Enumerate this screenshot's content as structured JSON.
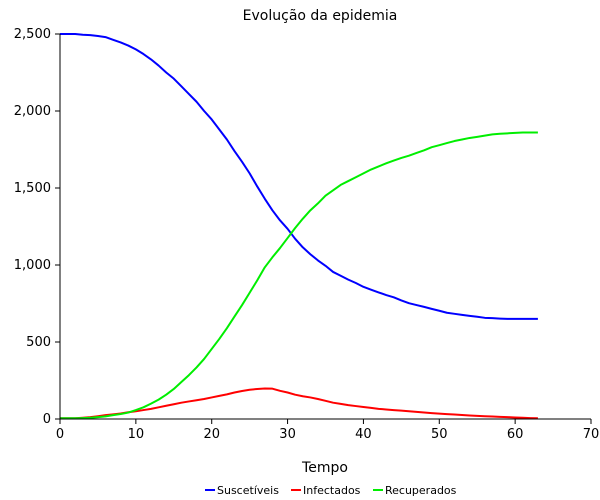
{
  "chart_data": {
    "type": "line",
    "title": "Evolução da epidemia",
    "xlabel": "Tempo",
    "ylabel": "",
    "xlim": [
      0,
      70
    ],
    "ylim": [
      0,
      2500
    ],
    "xticks": [
      0,
      10,
      20,
      30,
      40,
      50,
      60,
      70
    ],
    "yticks": [
      0,
      500,
      1000,
      1500,
      2000,
      2500
    ],
    "xtick_labels": [
      "0",
      "10",
      "20",
      "30",
      "40",
      "50",
      "60",
      "70"
    ],
    "ytick_labels": [
      "0",
      "500",
      "1,000",
      "1,500",
      "2,000",
      "2,500"
    ],
    "grid": false,
    "legend_position": "bottom",
    "x": [
      0,
      1,
      2,
      3,
      4,
      5,
      6,
      7,
      8,
      9,
      10,
      11,
      12,
      13,
      14,
      15,
      16,
      17,
      18,
      19,
      20,
      21,
      22,
      23,
      24,
      25,
      26,
      27,
      28,
      29,
      30,
      31,
      32,
      33,
      34,
      35,
      36,
      37,
      38,
      39,
      40,
      41,
      42,
      43,
      44,
      45,
      46,
      47,
      48,
      49,
      50,
      51,
      52,
      53,
      54,
      55,
      56,
      57,
      58,
      59,
      60,
      61,
      62,
      63
    ],
    "series": [
      {
        "name": "Suscetíveis",
        "color": "#0000ff",
        "values": [
          2500,
          2500,
          2500,
          2495,
          2493,
          2487,
          2480,
          2462,
          2445,
          2425,
          2400,
          2370,
          2335,
          2295,
          2250,
          2210,
          2160,
          2110,
          2060,
          2000,
          1945,
          1880,
          1815,
          1740,
          1670,
          1595,
          1510,
          1430,
          1355,
          1290,
          1235,
          1170,
          1115,
          1070,
          1030,
          995,
          955,
          930,
          905,
          883,
          858,
          840,
          822,
          805,
          790,
          770,
          752,
          740,
          728,
          715,
          703,
          690,
          683,
          676,
          670,
          664,
          657,
          655,
          652,
          650,
          650,
          650,
          650,
          650
        ]
      },
      {
        "name": "Infectados",
        "color": "#ff0000",
        "values": [
          5,
          5,
          5,
          8,
          12,
          18,
          25,
          30,
          36,
          44,
          50,
          58,
          66,
          76,
          86,
          96,
          106,
          114,
          122,
          130,
          140,
          150,
          160,
          172,
          182,
          190,
          195,
          198,
          197,
          183,
          172,
          158,
          148,
          140,
          130,
          118,
          106,
          98,
          90,
          84,
          78,
          72,
          66,
          62,
          58,
          54,
          50,
          46,
          42,
          38,
          35,
          32,
          29,
          26,
          23,
          20,
          18,
          16,
          14,
          12,
          10,
          8,
          6,
          5
        ]
      },
      {
        "name": "Recuperados",
        "color": "#00ee00",
        "values": [
          5,
          5,
          5,
          6,
          8,
          12,
          17,
          25,
          32,
          42,
          58,
          76,
          100,
          126,
          158,
          195,
          240,
          285,
          335,
          390,
          455,
          520,
          590,
          665,
          740,
          820,
          900,
          985,
          1050,
          1110,
          1175,
          1240,
          1300,
          1355,
          1400,
          1450,
          1485,
          1520,
          1545,
          1570,
          1595,
          1620,
          1640,
          1660,
          1678,
          1695,
          1710,
          1728,
          1745,
          1765,
          1778,
          1792,
          1805,
          1815,
          1825,
          1832,
          1840,
          1848,
          1852,
          1855,
          1858,
          1860,
          1860,
          1860
        ]
      }
    ]
  }
}
